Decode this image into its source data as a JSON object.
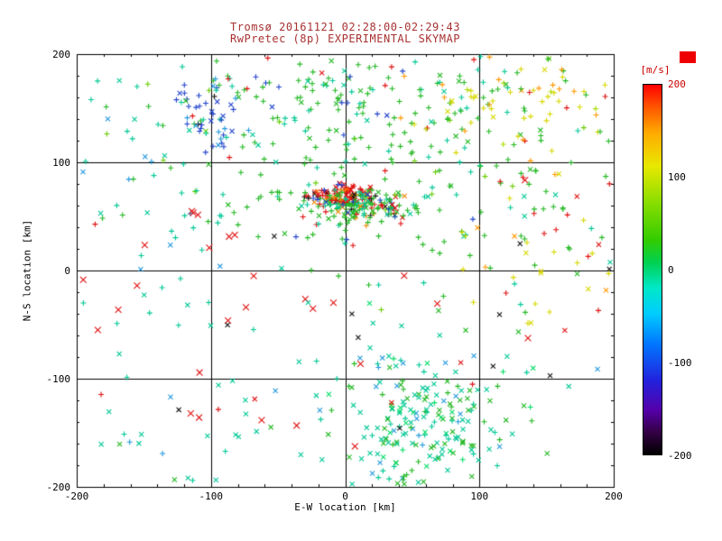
{
  "chart_data": {
    "type": "scatter",
    "title_line1": "Tromsø 20161121 02:28:00-02:29:43",
    "title_line2": "RwPretec (8p) EXPERIMENTAL SKYMAP",
    "xlabel": "E-W location [km]",
    "ylabel": "N-S location [km]",
    "xlim": [
      -200,
      200
    ],
    "ylim": [
      -200,
      200
    ],
    "xticks": [
      "-200",
      "-100",
      "0",
      "100",
      "200"
    ],
    "yticks": [
      "200",
      "100",
      "0",
      "-100",
      "-200"
    ],
    "xtick_values": [
      -200,
      -100,
      0,
      100,
      200
    ],
    "ytick_values": [
      200,
      100,
      0,
      -100,
      -200
    ],
    "grid_lines": [
      -100,
      0,
      100
    ],
    "minor_tick_step": 20,
    "grid": true,
    "legend_position": "right-colorbar",
    "marker_types": [
      "+",
      "x"
    ],
    "colors": {
      "title": "#a83232",
      "axis_text": "#000000",
      "frame": "#000000",
      "background": "#ffffff",
      "colorbar_label": "#cc0000"
    },
    "colorbar": {
      "label": "[m/s]",
      "range": [
        -200,
        200
      ],
      "ticks": [
        "200",
        "100",
        "0",
        "-100",
        "-200"
      ],
      "tick_values": [
        200,
        100,
        0,
        -100,
        -200
      ],
      "tick_colors": [
        "#cc0000",
        "#000000",
        "#000000",
        "#000000",
        "#000000"
      ],
      "overflow_marker_color": "#ee0000",
      "stops": [
        {
          "p": 0.0,
          "c": "#000000"
        },
        {
          "p": 0.06,
          "c": "#330044"
        },
        {
          "p": 0.12,
          "c": "#5500aa"
        },
        {
          "p": 0.2,
          "c": "#2222dd"
        },
        {
          "p": 0.3,
          "c": "#0077ff"
        },
        {
          "p": 0.38,
          "c": "#00ccff"
        },
        {
          "p": 0.45,
          "c": "#00e8c8"
        },
        {
          "p": 0.52,
          "c": "#00d050"
        },
        {
          "p": 0.58,
          "c": "#33cc00"
        },
        {
          "p": 0.68,
          "c": "#88dd00"
        },
        {
          "p": 0.78,
          "c": "#e8e800"
        },
        {
          "p": 0.87,
          "c": "#ffaa00"
        },
        {
          "p": 0.94,
          "c": "#ff5500"
        },
        {
          "p": 1.0,
          "c": "#ff0000"
        }
      ]
    },
    "seed": 20161121,
    "clusters": [
      {
        "name": "core-red-streak",
        "cx": -2,
        "cy": 70,
        "sx": 13,
        "sy": 5,
        "n": 70,
        "marker": "mix",
        "x_frac": 0.5,
        "size": 3,
        "colors": [
          [
            "#e01010",
            0.8
          ],
          [
            "#ff7700",
            0.1
          ],
          [
            "#101010",
            0.1
          ]
        ]
      },
      {
        "name": "core-dense",
        "cx": 8,
        "cy": 60,
        "sx": 20,
        "sy": 8,
        "n": 170,
        "marker": "mix",
        "x_frac": 0.35,
        "size": 3,
        "colors": [
          [
            "#22b822",
            0.4
          ],
          [
            "#00c896",
            0.2
          ],
          [
            "#e01010",
            0.15
          ],
          [
            "#2244cc",
            0.1
          ],
          [
            "#101010",
            0.07
          ],
          [
            "#ee8800",
            0.08
          ]
        ]
      },
      {
        "name": "upper-green-field",
        "cx": 30,
        "cy": 95,
        "sx": 95,
        "sy": 55,
        "n": 250,
        "marker": "mix",
        "x_frac": 0.15,
        "size": 3,
        "colors": [
          [
            "#22b822",
            0.62
          ],
          [
            "#00c896",
            0.2
          ],
          [
            "#66cc00",
            0.1
          ],
          [
            "#e01010",
            0.04
          ],
          [
            "#2244cc",
            0.04
          ]
        ]
      },
      {
        "name": "top-mid-green",
        "cx": 5,
        "cy": 170,
        "sx": 65,
        "sy": 22,
        "n": 70,
        "marker": "mix",
        "x_frac": 0.2,
        "size": 3,
        "colors": [
          [
            "#22b822",
            0.5
          ],
          [
            "#00c896",
            0.3
          ],
          [
            "#2244cc",
            0.1
          ],
          [
            "#e01010",
            0.1
          ]
        ]
      },
      {
        "name": "upper-right-warm",
        "cx": 140,
        "cy": 160,
        "sx": 48,
        "sy": 32,
        "n": 95,
        "marker": "mix",
        "x_frac": 0.1,
        "size": 3,
        "colors": [
          [
            "#d8d800",
            0.4
          ],
          [
            "#ff9900",
            0.22
          ],
          [
            "#22b822",
            0.2
          ],
          [
            "#aadd00",
            0.1
          ],
          [
            "#e01010",
            0.04
          ],
          [
            "#00c896",
            0.04
          ]
        ]
      },
      {
        "name": "blue-cluster",
        "cx": -100,
        "cy": 138,
        "sx": 16,
        "sy": 20,
        "n": 42,
        "marker": "mix",
        "x_frac": 0.3,
        "size": 3,
        "colors": [
          [
            "#2244cc",
            0.55
          ],
          [
            "#2299dd",
            0.2
          ],
          [
            "#00c896",
            0.1
          ],
          [
            "#101010",
            0.1
          ],
          [
            "#e01010",
            0.05
          ]
        ]
      },
      {
        "name": "left-upper-cyan",
        "cx": -150,
        "cy": 130,
        "sx": 42,
        "sy": 45,
        "n": 40,
        "marker": "mix",
        "x_frac": 0.3,
        "size": 3,
        "colors": [
          [
            "#00c896",
            0.6
          ],
          [
            "#2299dd",
            0.2
          ],
          [
            "#22b822",
            0.15
          ],
          [
            "#e01010",
            0.05
          ]
        ]
      },
      {
        "name": "right-mid-sparse",
        "cx": 120,
        "cy": 5,
        "sx": 65,
        "sy": 60,
        "n": 55,
        "marker": "mix",
        "x_frac": 0.3,
        "size": 3,
        "colors": [
          [
            "#22b822",
            0.5
          ],
          [
            "#d8d800",
            0.2
          ],
          [
            "#00c896",
            0.15
          ],
          [
            "#e01010",
            0.15
          ]
        ]
      },
      {
        "name": "right-yellow",
        "cx": 165,
        "cy": 30,
        "sx": 35,
        "sy": 55,
        "n": 22,
        "marker": "mix",
        "x_frac": 0.3,
        "size": 3,
        "colors": [
          [
            "#d8d800",
            0.55
          ],
          [
            "#ff9900",
            0.2
          ],
          [
            "#e01010",
            0.15
          ],
          [
            "#22b822",
            0.1
          ]
        ]
      },
      {
        "name": "bottom-cluster",
        "cx": 62,
        "cy": -140,
        "sx": 34,
        "sy": 42,
        "n": 210,
        "marker": "mix",
        "x_frac": 0.75,
        "size": 3,
        "colors": [
          [
            "#00c896",
            0.55
          ],
          [
            "#22b822",
            0.25
          ],
          [
            "#2299dd",
            0.1
          ],
          [
            "#00dd66",
            0.1
          ]
        ]
      },
      {
        "name": "bottom-sparse",
        "cx": -60,
        "cy": -150,
        "sx": 100,
        "sy": 45,
        "n": 55,
        "marker": "mix",
        "x_frac": 0.7,
        "size": 3,
        "colors": [
          [
            "#00c896",
            0.7
          ],
          [
            "#2299dd",
            0.15
          ],
          [
            "#22b822",
            0.1
          ],
          [
            "#e01010",
            0.05
          ]
        ]
      },
      {
        "name": "sparse-red-x",
        "cx": -80,
        "cy": -40,
        "sx": 85,
        "sy": 75,
        "n": 32,
        "marker": "x",
        "size": 4,
        "colors": [
          [
            "#e01010",
            1
          ]
        ]
      },
      {
        "name": "sparse-black-x",
        "cx": -20,
        "cy": -40,
        "sx": 110,
        "sy": 90,
        "n": 12,
        "marker": "x",
        "size": 3,
        "colors": [
          [
            "#101010",
            1
          ]
        ]
      },
      {
        "name": "mid-left-cyan",
        "cx": -140,
        "cy": -10,
        "sx": 50,
        "sy": 60,
        "n": 30,
        "marker": "mix",
        "x_frac": 0.5,
        "size": 3,
        "colors": [
          [
            "#00c896",
            0.7
          ],
          [
            "#2299dd",
            0.3
          ]
        ]
      }
    ]
  }
}
